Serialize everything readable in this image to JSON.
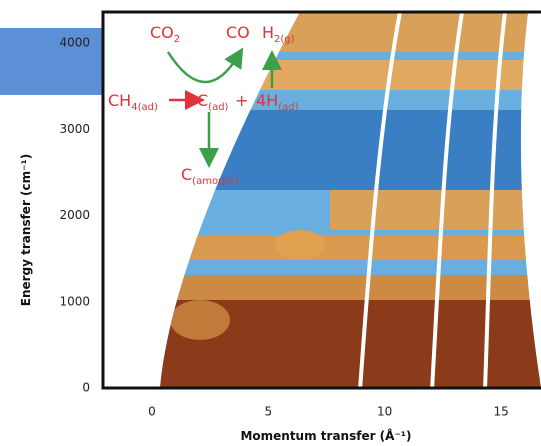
{
  "chart_data": {
    "type": "heatmap",
    "xlabel": "Momentum transfer (Å⁻¹)",
    "ylabel": "Energy transfer (cm⁻¹)",
    "xlim": [
      -2.1,
      16.8
    ],
    "ylim": [
      0,
      4360
    ],
    "xticks": [
      0,
      5,
      10,
      15
    ],
    "yticks": [
      0,
      1000,
      2000,
      3000,
      4000
    ],
    "annotations": [
      {
        "text": "CO",
        "sub": "2"
      },
      {
        "text": "CO"
      },
      {
        "text": "H",
        "sub": "2(g)"
      },
      {
        "text": "CH",
        "sub": "4(ad)"
      },
      {
        "text": "C",
        "sub": "(ad)"
      },
      {
        "text": "+"
      },
      {
        "text": "4H",
        "sub": "(ad)"
      },
      {
        "text": "C",
        "sub": "(amorph)"
      }
    ]
  }
}
